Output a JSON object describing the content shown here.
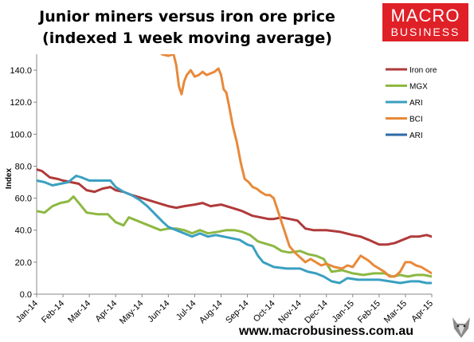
{
  "header": {
    "title_line1": "Junior miners versus iron ore price",
    "title_line2": "(indexed 1 week moving average)"
  },
  "logo": {
    "line1": "MACRO",
    "line2": "BUSINESS",
    "color": "#e02027"
  },
  "footer": {
    "url": "www.macrobusiness.com.au"
  },
  "chart_data": {
    "type": "line",
    "title": "Junior miners versus iron ore price (indexed 1 week moving average)",
    "xlabel": "",
    "ylabel": "Index",
    "ylim": [
      0,
      150
    ],
    "yticks": [
      "0.0",
      "20.0",
      "40.0",
      "60.0",
      "80.0",
      "100.0",
      "120.0",
      "140.0"
    ],
    "categories": [
      "Jan-14",
      "Feb-14",
      "Mar-14",
      "Apr-14",
      "May-14",
      "Jun-14",
      "Jul-14",
      "Aug-14",
      "Sep-14",
      "Oct-14",
      "Nov-14",
      "Dec-14",
      "Jan-15",
      "Feb-15",
      "Mar-15",
      "Apr-15"
    ],
    "legend_position": "top-right",
    "grid": false,
    "series": [
      {
        "name": "Iron ore",
        "color": "#b03a3a",
        "x": [
          0,
          0.2,
          0.5,
          0.8,
          1.0,
          1.3,
          1.6,
          1.9,
          2.2,
          2.5,
          2.8,
          3.0,
          3.3,
          3.6,
          4.0,
          4.4,
          4.8,
          5.0,
          5.3,
          5.6,
          6.0,
          6.3,
          6.6,
          7.0,
          7.4,
          7.8,
          8.2,
          8.5,
          8.8,
          9.0,
          9.3,
          9.6,
          9.9,
          10.2,
          10.5,
          11.0,
          11.5,
          12.0,
          12.3,
          12.6,
          13.0,
          13.3,
          13.6,
          13.9,
          14.2,
          14.5,
          14.8,
          15.0
        ],
        "values": [
          78,
          77,
          73,
          72,
          71,
          70,
          69,
          65,
          64,
          66,
          67,
          65,
          64,
          62,
          60,
          58,
          56,
          55,
          54,
          55,
          56,
          57,
          55,
          56,
          54,
          52,
          49,
          48,
          47,
          47,
          48,
          47,
          46,
          41,
          40,
          40,
          39,
          37,
          36,
          34,
          31,
          31,
          32,
          34,
          36,
          36,
          37,
          36
        ]
      },
      {
        "name": "MGX",
        "color": "#8db842",
        "x": [
          0,
          0.3,
          0.6,
          0.9,
          1.2,
          1.4,
          1.6,
          1.9,
          2.3,
          2.7,
          3.0,
          3.3,
          3.5,
          3.8,
          4.1,
          4.4,
          4.7,
          5.0,
          5.3,
          5.6,
          5.9,
          6.2,
          6.5,
          6.9,
          7.2,
          7.5,
          7.8,
          8.1,
          8.4,
          8.8,
          9.0,
          9.3,
          9.6,
          10.0,
          10.3,
          10.6,
          10.9,
          11.2,
          11.6,
          12.0,
          12.4,
          12.8,
          13.2,
          13.5,
          13.8,
          14.1,
          14.4,
          14.7,
          15.0
        ],
        "values": [
          52,
          51,
          55,
          57,
          58,
          61,
          57,
          51,
          50,
          50,
          45,
          43,
          48,
          46,
          44,
          42,
          40,
          41,
          41,
          40,
          38,
          40,
          38,
          39,
          40,
          40,
          39,
          37,
          33,
          31,
          30,
          27,
          26,
          27,
          25,
          24,
          22,
          14,
          15,
          13,
          12,
          13,
          13,
          11,
          12,
          11,
          12,
          12,
          11
        ]
      },
      {
        "name": "ARI",
        "color": "#3aa0c0",
        "x": [
          0,
          0.3,
          0.6,
          0.9,
          1.2,
          1.5,
          1.7,
          2.0,
          2.4,
          2.8,
          3.0,
          3.3,
          3.6,
          3.9,
          4.2,
          4.5,
          4.8,
          5.0,
          5.3,
          5.6,
          5.9,
          6.2,
          6.5,
          6.8,
          7.1,
          7.4,
          7.7,
          8.0,
          8.2,
          8.4,
          8.6,
          9.0,
          9.5,
          10.0,
          10.3,
          10.6,
          10.9,
          11.2,
          11.5,
          11.8,
          12.2,
          12.6,
          13.0,
          13.4,
          13.8,
          14.2,
          14.5,
          14.8,
          15.0
        ],
        "values": [
          71,
          70,
          68,
          69,
          70,
          74,
          73,
          71,
          71,
          71,
          67,
          64,
          62,
          59,
          55,
          50,
          45,
          42,
          40,
          38,
          36,
          38,
          36,
          37,
          36,
          35,
          34,
          31,
          30,
          24,
          20,
          17,
          16,
          16,
          14,
          13,
          11,
          8,
          7,
          10,
          9,
          9,
          9,
          8,
          7,
          8,
          8,
          7,
          7
        ]
      },
      {
        "name": "BCI",
        "color": "#e8893a",
        "x": [
          4.75,
          5.0,
          5.2,
          5.3,
          5.4,
          5.5,
          5.6,
          5.7,
          5.85,
          6.0,
          6.15,
          6.3,
          6.45,
          6.6,
          6.75,
          6.9,
          7.0,
          7.1,
          7.2,
          7.3,
          7.45,
          7.6,
          7.75,
          7.9,
          8.05,
          8.2,
          8.35,
          8.5,
          8.7,
          8.85,
          9.0,
          9.2,
          9.4,
          9.6,
          9.8,
          10.0,
          10.2,
          10.4,
          10.6,
          10.8,
          11.0,
          11.3,
          11.6,
          11.8,
          12.0,
          12.3,
          12.6,
          12.8,
          13.0,
          13.2,
          13.4,
          13.6,
          13.8,
          14.0,
          14.2,
          14.4,
          14.6,
          14.8,
          15.0
        ],
        "values": [
          150,
          149,
          150,
          143,
          130,
          125,
          133,
          137,
          140,
          136,
          137,
          139,
          137,
          138,
          139,
          141,
          137,
          128,
          126,
          118,
          105,
          95,
          82,
          72,
          70,
          67,
          66,
          64,
          62,
          62,
          60,
          50,
          40,
          30,
          26,
          23,
          20,
          22,
          20,
          18,
          19,
          17,
          16,
          18,
          17,
          24,
          21,
          18,
          16,
          14,
          11,
          11,
          14,
          20,
          20,
          18,
          17,
          15,
          13
        ]
      },
      {
        "name": "ARI",
        "color": "#2f6aa8",
        "x": [],
        "values": []
      }
    ]
  }
}
